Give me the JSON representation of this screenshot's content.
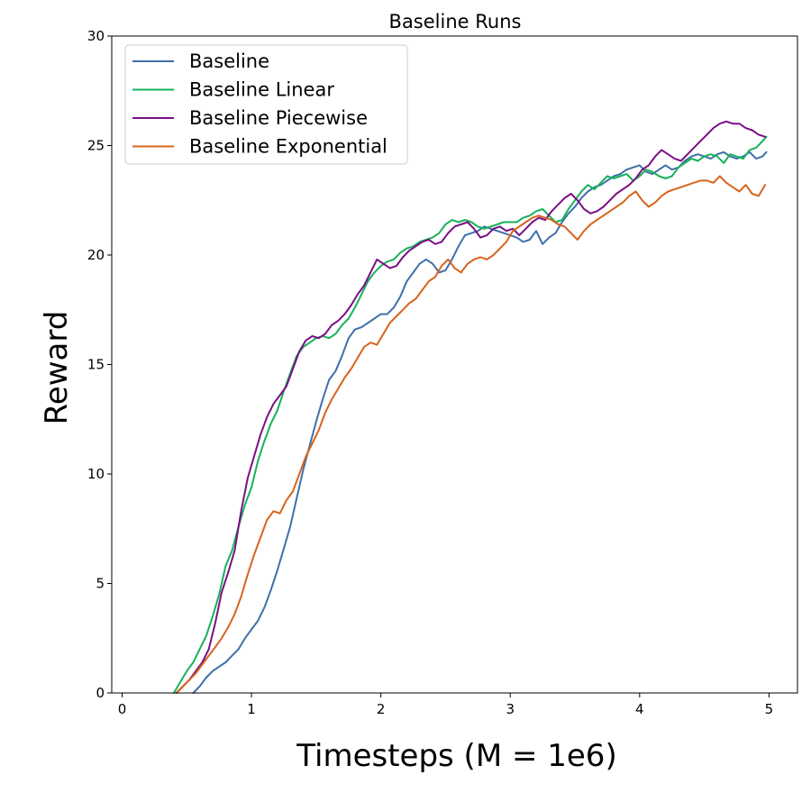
{
  "chart_data": {
    "type": "line",
    "title": "Baseline Runs",
    "xlabel": "Timesteps (M = 1e6)",
    "ylabel": "Reward",
    "xlim": [
      -0.08,
      5.22
    ],
    "ylim": [
      0,
      30
    ],
    "xticks": [
      0,
      1,
      2,
      3,
      4,
      5
    ],
    "yticks": [
      0,
      5,
      10,
      15,
      20,
      25,
      30
    ],
    "grid": false,
    "legend_position": "top-left",
    "series": [
      {
        "name": "Baseline",
        "color": "#3e6fa8",
        "x": [
          0.55,
          0.6,
          0.65,
          0.7,
          0.75,
          0.8,
          0.85,
          0.9,
          0.95,
          1.0,
          1.05,
          1.1,
          1.15,
          1.2,
          1.25,
          1.3,
          1.35,
          1.4,
          1.45,
          1.5,
          1.55,
          1.6,
          1.65,
          1.7,
          1.75,
          1.8,
          1.85,
          1.9,
          1.95,
          2.0,
          2.05,
          2.1,
          2.15,
          2.2,
          2.25,
          2.3,
          2.35,
          2.4,
          2.45,
          2.5,
          2.55,
          2.6,
          2.65,
          2.7,
          2.75,
          2.8,
          2.85,
          2.9,
          2.95,
          3.0,
          3.05,
          3.1,
          3.15,
          3.2,
          3.25,
          3.3,
          3.35,
          3.4,
          3.45,
          3.5,
          3.55,
          3.6,
          3.65,
          3.7,
          3.75,
          3.8,
          3.85,
          3.9,
          3.95,
          4.0,
          4.05,
          4.1,
          4.15,
          4.2,
          4.25,
          4.3,
          4.35,
          4.4,
          4.45,
          4.5,
          4.55,
          4.6,
          4.65,
          4.7,
          4.75,
          4.8,
          4.85,
          4.9,
          4.95,
          4.98
        ],
        "values": [
          0.0,
          0.3,
          0.7,
          1.0,
          1.2,
          1.4,
          1.7,
          2.0,
          2.5,
          2.9,
          3.3,
          3.9,
          4.7,
          5.6,
          6.6,
          7.6,
          8.9,
          10.2,
          11.3,
          12.4,
          13.4,
          14.3,
          14.7,
          15.4,
          16.2,
          16.6,
          16.7,
          16.9,
          17.1,
          17.3,
          17.3,
          17.6,
          18.1,
          18.8,
          19.2,
          19.6,
          19.8,
          19.6,
          19.2,
          19.3,
          19.8,
          20.4,
          20.9,
          21.0,
          21.1,
          21.3,
          21.2,
          21.1,
          21.0,
          20.9,
          20.8,
          20.6,
          20.7,
          21.1,
          20.5,
          20.8,
          21.0,
          21.5,
          21.9,
          22.2,
          22.6,
          22.9,
          23.1,
          23.2,
          23.4,
          23.6,
          23.7,
          23.9,
          24.0,
          24.1,
          23.8,
          23.7,
          23.9,
          24.1,
          23.9,
          24.0,
          24.3,
          24.5,
          24.6,
          24.5,
          24.4,
          24.6,
          24.7,
          24.5,
          24.4,
          24.5,
          24.7,
          24.4,
          24.5,
          24.7
        ]
      },
      {
        "name": "Baseline Linear",
        "color": "#17b25a",
        "x": [
          0.4,
          0.45,
          0.5,
          0.55,
          0.6,
          0.65,
          0.7,
          0.75,
          0.8,
          0.85,
          0.9,
          0.95,
          1.0,
          1.05,
          1.1,
          1.15,
          1.2,
          1.25,
          1.3,
          1.35,
          1.4,
          1.45,
          1.5,
          1.55,
          1.6,
          1.65,
          1.7,
          1.75,
          1.8,
          1.85,
          1.9,
          1.95,
          2.0,
          2.05,
          2.1,
          2.15,
          2.2,
          2.25,
          2.3,
          2.35,
          2.4,
          2.45,
          2.5,
          2.55,
          2.6,
          2.65,
          2.7,
          2.75,
          2.8,
          2.85,
          2.9,
          2.95,
          3.0,
          3.05,
          3.1,
          3.15,
          3.2,
          3.25,
          3.3,
          3.35,
          3.4,
          3.45,
          3.5,
          3.55,
          3.6,
          3.65,
          3.7,
          3.75,
          3.8,
          3.85,
          3.9,
          3.95,
          4.0,
          4.05,
          4.1,
          4.15,
          4.2,
          4.25,
          4.3,
          4.35,
          4.4,
          4.45,
          4.5,
          4.55,
          4.6,
          4.65,
          4.7,
          4.75,
          4.8,
          4.85,
          4.9,
          4.95,
          4.98
        ],
        "values": [
          0.0,
          0.5,
          1.0,
          1.4,
          2.0,
          2.6,
          3.5,
          4.5,
          5.8,
          6.5,
          7.6,
          8.6,
          9.4,
          10.6,
          11.5,
          12.3,
          12.9,
          13.8,
          14.6,
          15.4,
          15.8,
          16.0,
          16.2,
          16.3,
          16.2,
          16.4,
          16.8,
          17.1,
          17.6,
          18.2,
          18.8,
          19.2,
          19.5,
          19.7,
          19.8,
          20.1,
          20.3,
          20.4,
          20.6,
          20.7,
          20.8,
          21.0,
          21.4,
          21.6,
          21.5,
          21.6,
          21.5,
          21.3,
          21.2,
          21.3,
          21.4,
          21.5,
          21.5,
          21.5,
          21.7,
          21.8,
          22.0,
          22.1,
          21.8,
          21.5,
          21.6,
          22.1,
          22.5,
          22.9,
          23.2,
          23.0,
          23.3,
          23.6,
          23.5,
          23.6,
          23.7,
          23.4,
          23.6,
          23.9,
          23.8,
          23.6,
          23.5,
          23.6,
          24.0,
          24.2,
          24.4,
          24.3,
          24.5,
          24.6,
          24.5,
          24.2,
          24.6,
          24.5,
          24.4,
          24.8,
          24.9,
          25.2,
          25.4
        ]
      },
      {
        "name": "Baseline Piecewise",
        "color": "#7a0f85",
        "x": [
          0.42,
          0.47,
          0.52,
          0.57,
          0.62,
          0.67,
          0.72,
          0.77,
          0.82,
          0.87,
          0.92,
          0.97,
          1.02,
          1.07,
          1.12,
          1.17,
          1.22,
          1.27,
          1.32,
          1.37,
          1.42,
          1.47,
          1.52,
          1.57,
          1.62,
          1.67,
          1.72,
          1.77,
          1.82,
          1.87,
          1.92,
          1.97,
          2.02,
          2.07,
          2.12,
          2.17,
          2.22,
          2.27,
          2.32,
          2.37,
          2.42,
          2.47,
          2.52,
          2.57,
          2.62,
          2.67,
          2.72,
          2.77,
          2.82,
          2.87,
          2.92,
          2.97,
          3.02,
          3.07,
          3.12,
          3.17,
          3.22,
          3.27,
          3.32,
          3.37,
          3.42,
          3.47,
          3.52,
          3.57,
          3.62,
          3.67,
          3.72,
          3.77,
          3.82,
          3.87,
          3.92,
          3.97,
          4.02,
          4.07,
          4.12,
          4.17,
          4.22,
          4.27,
          4.32,
          4.37,
          4.42,
          4.47,
          4.52,
          4.57,
          4.62,
          4.67,
          4.72,
          4.77,
          4.82,
          4.87,
          4.92,
          4.97
        ],
        "values": [
          0.0,
          0.3,
          0.6,
          1.0,
          1.4,
          2.0,
          3.2,
          4.6,
          5.5,
          6.5,
          8.3,
          9.8,
          10.8,
          11.8,
          12.6,
          13.2,
          13.6,
          14.0,
          14.8,
          15.6,
          16.1,
          16.3,
          16.2,
          16.4,
          16.8,
          17.0,
          17.3,
          17.7,
          18.2,
          18.6,
          19.2,
          19.8,
          19.6,
          19.4,
          19.5,
          19.9,
          20.2,
          20.4,
          20.6,
          20.7,
          20.5,
          20.6,
          21.0,
          21.3,
          21.4,
          21.5,
          21.2,
          20.8,
          20.9,
          21.2,
          21.3,
          21.1,
          21.2,
          20.9,
          21.2,
          21.5,
          21.7,
          21.6,
          22.0,
          22.3,
          22.6,
          22.8,
          22.5,
          22.1,
          21.9,
          22.0,
          22.2,
          22.5,
          22.8,
          23.0,
          23.2,
          23.5,
          23.9,
          24.1,
          24.5,
          24.8,
          24.6,
          24.4,
          24.3,
          24.6,
          24.9,
          25.2,
          25.5,
          25.8,
          26.0,
          26.1,
          26.0,
          26.0,
          25.8,
          25.7,
          25.5,
          25.4
        ]
      },
      {
        "name": "Baseline Exponential",
        "color": "#d8631c",
        "x": [
          0.42,
          0.47,
          0.52,
          0.57,
          0.62,
          0.67,
          0.72,
          0.77,
          0.82,
          0.87,
          0.92,
          0.97,
          1.02,
          1.07,
          1.12,
          1.17,
          1.22,
          1.27,
          1.32,
          1.37,
          1.42,
          1.47,
          1.52,
          1.57,
          1.62,
          1.67,
          1.72,
          1.77,
          1.82,
          1.87,
          1.92,
          1.97,
          2.02,
          2.07,
          2.12,
          2.17,
          2.22,
          2.27,
          2.32,
          2.37,
          2.42,
          2.47,
          2.52,
          2.57,
          2.62,
          2.67,
          2.72,
          2.77,
          2.82,
          2.87,
          2.92,
          2.97,
          3.02,
          3.07,
          3.12,
          3.17,
          3.22,
          3.27,
          3.32,
          3.37,
          3.42,
          3.47,
          3.52,
          3.57,
          3.62,
          3.67,
          3.72,
          3.77,
          3.82,
          3.87,
          3.92,
          3.97,
          4.02,
          4.07,
          4.12,
          4.17,
          4.22,
          4.27,
          4.32,
          4.37,
          4.42,
          4.47,
          4.52,
          4.57,
          4.62,
          4.67,
          4.72,
          4.77,
          4.82,
          4.87,
          4.92,
          4.97
        ],
        "values": [
          0.0,
          0.3,
          0.6,
          0.9,
          1.3,
          1.7,
          2.1,
          2.5,
          3.0,
          3.6,
          4.4,
          5.4,
          6.3,
          7.1,
          7.9,
          8.3,
          8.2,
          8.8,
          9.2,
          10.0,
          10.8,
          11.4,
          12.0,
          12.8,
          13.4,
          13.9,
          14.4,
          14.8,
          15.3,
          15.8,
          16.0,
          15.9,
          16.4,
          16.9,
          17.2,
          17.5,
          17.8,
          18.0,
          18.4,
          18.8,
          19.0,
          19.5,
          19.8,
          19.4,
          19.2,
          19.6,
          19.8,
          19.9,
          19.8,
          20.0,
          20.3,
          20.6,
          21.1,
          21.3,
          21.5,
          21.7,
          21.8,
          21.7,
          21.6,
          21.4,
          21.3,
          21.0,
          20.7,
          21.1,
          21.4,
          21.6,
          21.8,
          22.0,
          22.2,
          22.4,
          22.7,
          22.9,
          22.5,
          22.2,
          22.4,
          22.7,
          22.9,
          23.0,
          23.1,
          23.2,
          23.3,
          23.4,
          23.4,
          23.3,
          23.6,
          23.3,
          23.1,
          22.9,
          23.2,
          22.8,
          22.7,
          23.2
        ]
      }
    ]
  }
}
